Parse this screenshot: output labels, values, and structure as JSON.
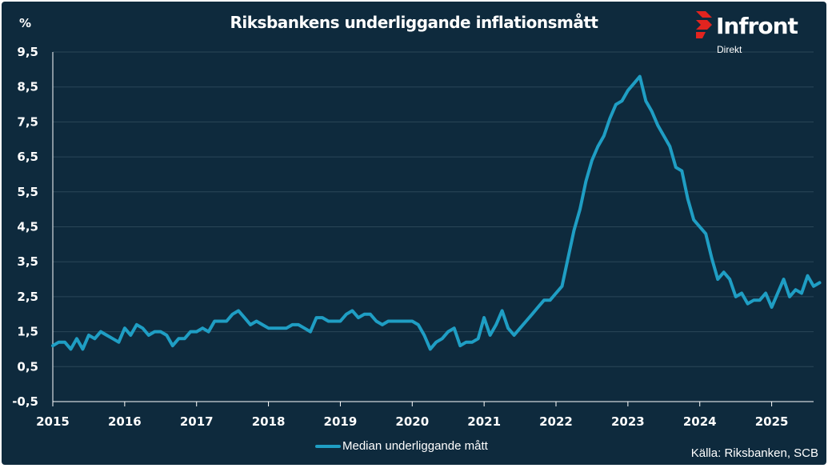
{
  "chart_data": {
    "type": "line",
    "title": "Riksbankens underliggande inflationsmått",
    "ylabel": "%",
    "ylim": [
      -0.5,
      9.5
    ],
    "yticks": [
      -0.5,
      0.5,
      1.5,
      2.5,
      3.5,
      4.5,
      5.5,
      6.5,
      7.5,
      8.5,
      9.5
    ],
    "ytick_labels": [
      "-0,5",
      "0,5",
      "1,5",
      "2,5",
      "3,5",
      "4,5",
      "5,5",
      "6,5",
      "7,5",
      "8,5",
      "9,5"
    ],
    "xlim": [
      "2015-01",
      "2025-08"
    ],
    "xtick_labels": [
      "2015",
      "2016",
      "2017",
      "2018",
      "2019",
      "2020",
      "2021",
      "2022",
      "2023",
      "2024",
      "2025"
    ],
    "grid": "horizontal",
    "legend": "bottom",
    "line_color": "#1f9ec4",
    "series": [
      {
        "name": "Median underliggande mått",
        "x_start": "2015-01",
        "frequency": "monthly",
        "values": [
          1.1,
          1.2,
          1.2,
          1.0,
          1.3,
          1.0,
          1.4,
          1.3,
          1.5,
          1.4,
          1.3,
          1.2,
          1.6,
          1.4,
          1.7,
          1.6,
          1.4,
          1.5,
          1.5,
          1.4,
          1.1,
          1.3,
          1.3,
          1.5,
          1.5,
          1.6,
          1.5,
          1.8,
          1.8,
          1.8,
          2.0,
          2.1,
          1.9,
          1.7,
          1.8,
          1.7,
          1.6,
          1.6,
          1.6,
          1.6,
          1.7,
          1.7,
          1.6,
          1.5,
          1.9,
          1.9,
          1.8,
          1.8,
          1.8,
          2.0,
          2.1,
          1.9,
          2.0,
          2.0,
          1.8,
          1.7,
          1.8,
          1.8,
          1.8,
          1.8,
          1.8,
          1.7,
          1.4,
          1.0,
          1.2,
          1.3,
          1.5,
          1.6,
          1.1,
          1.2,
          1.2,
          1.3,
          1.9,
          1.4,
          1.7,
          2.1,
          1.6,
          1.4,
          1.6,
          1.8,
          2.0,
          2.2,
          2.4,
          2.4,
          2.6,
          2.8,
          3.6,
          4.4,
          5.0,
          5.8,
          6.4,
          6.8,
          7.1,
          7.6,
          8.0,
          8.1,
          8.4,
          8.6,
          8.8,
          8.1,
          7.8,
          7.4,
          7.1,
          6.8,
          6.2,
          6.1,
          5.3,
          4.7,
          4.5,
          4.3,
          3.6,
          3.0,
          3.2,
          3.0,
          2.5,
          2.6,
          2.3,
          2.4,
          2.4,
          2.6,
          2.2,
          2.6,
          3.0,
          2.5,
          2.7,
          2.6,
          3.1,
          2.8,
          2.9
        ]
      }
    ]
  },
  "logo": {
    "name": "Infront",
    "sub": "Direkt",
    "color": "#e2241f"
  },
  "source": "Källa: Riksbanken, SCB"
}
